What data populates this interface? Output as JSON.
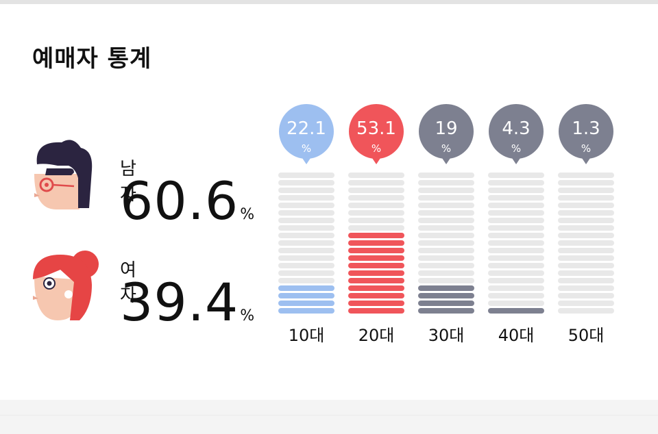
{
  "title": "예매자 통계",
  "gender": {
    "male": {
      "label": "남자",
      "value": "60.6",
      "unit": "%"
    },
    "female": {
      "label": "여자",
      "value": "39.4",
      "unit": "%"
    }
  },
  "colors": {
    "accent_blue": "#9dbff0",
    "accent_red": "#f0555a",
    "gray": "#7d8090",
    "empty": "#e8e8e8"
  },
  "chart_data": {
    "type": "bar",
    "categories": [
      "10대",
      "20대",
      "30대",
      "40대",
      "50대"
    ],
    "values": [
      22.1,
      53.1,
      19,
      4.3,
      1.3
    ],
    "value_labels": [
      "22.1",
      "53.1",
      "19",
      "4.3",
      "1.3"
    ],
    "unit": "%",
    "ylim": [
      0,
      100
    ],
    "bar_colors": [
      "#9dbff0",
      "#f0555a",
      "#7d8090",
      "#7d8090",
      "#7d8090"
    ],
    "segments": 19,
    "filled_segments": [
      4,
      11,
      4,
      1,
      0
    ]
  }
}
